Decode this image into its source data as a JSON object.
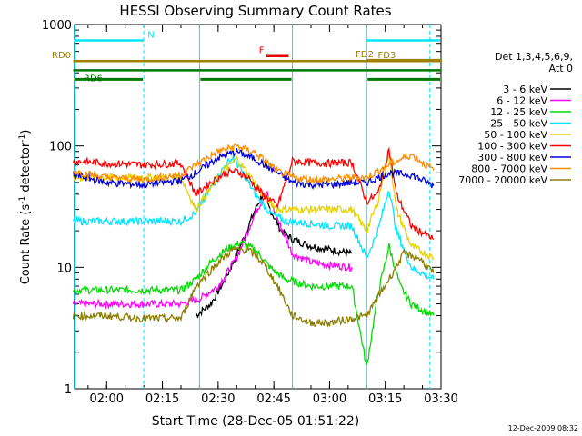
{
  "chart_data": {
    "type": "line",
    "title": "HESSI Observing Summary Count Rates",
    "xlabel": "Start Time (28-Dec-05 01:51:22)",
    "ylabel_main": "Count Rate (s",
    "ylabel_sup1": "-1",
    "ylabel_mid": " detector",
    "ylabel_sup2": "-1",
    "ylabel_end": ")",
    "y_scale": "log",
    "ylim": [
      1,
      1000
    ],
    "xlim": [
      "01:51:22",
      "03:30:00"
    ],
    "x_ticks": [
      "02:00",
      "02:15",
      "02:30",
      "02:45",
      "03:00",
      "03:15",
      "03:30"
    ],
    "y_ticks": [
      "1",
      "10",
      "100",
      "1000"
    ],
    "legend_title_1": "Det 1,3,4,5,6,9,",
    "legend_title_2": "Att 0",
    "legend_position": "right",
    "timestamp": "12-Dec-2009 08:32",
    "series": [
      {
        "name": "3 - 6 keV",
        "color": "#000000",
        "x": [
          "02:24",
          "02:28",
          "02:32",
          "02:36",
          "02:40",
          "02:42",
          "02:44",
          "02:47",
          "02:50",
          "02:55",
          "03:00",
          "03:06"
        ],
        "y": [
          4,
          5,
          8,
          15,
          30,
          40,
          30,
          20,
          17,
          15,
          14,
          13
        ]
      },
      {
        "name": "6 - 12 keV",
        "color": "#ff00ff",
        "x": [
          "01:51",
          "02:00",
          "02:10",
          "02:20",
          "02:25",
          "02:30",
          "02:35",
          "02:40",
          "02:43",
          "02:46",
          "02:50",
          "02:55",
          "03:00",
          "03:06"
        ],
        "y": [
          5,
          5,
          5,
          5,
          5.5,
          7,
          12,
          28,
          42,
          25,
          13,
          11,
          10.5,
          10
        ]
      },
      {
        "name": "12 - 25 keV",
        "color": "#00dd00",
        "x": [
          "01:51",
          "02:00",
          "02:10",
          "02:20",
          "02:24",
          "02:28",
          "02:32",
          "02:36",
          "02:40",
          "02:44",
          "02:48",
          "02:55",
          "03:00",
          "03:06",
          "03:10",
          "03:13",
          "03:16",
          "03:19",
          "03:22",
          "03:28"
        ],
        "y": [
          6.5,
          6.5,
          6.5,
          6.5,
          8,
          11,
          14,
          16,
          14,
          10,
          8,
          7,
          7,
          7,
          1.5,
          6,
          15,
          7,
          5,
          4
        ]
      },
      {
        "name": "25 - 50 keV",
        "color": "#00e5ff",
        "x": [
          "01:51",
          "02:00",
          "02:10",
          "02:20",
          "02:24",
          "02:28",
          "02:32",
          "02:34",
          "02:36",
          "02:40",
          "02:44",
          "02:48",
          "02:55",
          "03:00",
          "03:06",
          "03:10",
          "03:13",
          "03:16",
          "03:18",
          "03:22",
          "03:28"
        ],
        "y": [
          24,
          24,
          24,
          24,
          28,
          45,
          70,
          80,
          65,
          40,
          28,
          24,
          23,
          22,
          22,
          12,
          20,
          45,
          20,
          10,
          8
        ]
      },
      {
        "name": "50 - 100 keV",
        "color": "#e6d200",
        "x": [
          "01:51",
          "02:00",
          "02:10",
          "02:20",
          "02:24",
          "02:28",
          "02:32",
          "02:35",
          "02:38",
          "02:42",
          "02:46",
          "02:50",
          "02:55",
          "03:00",
          "03:06",
          "03:10",
          "03:13",
          "03:16",
          "03:18",
          "03:22",
          "03:28"
        ],
        "y": [
          55,
          55,
          55,
          55,
          30,
          45,
          65,
          78,
          60,
          40,
          30,
          30,
          30,
          30,
          30,
          20,
          35,
          90,
          30,
          15,
          12
        ]
      },
      {
        "name": "100 - 300 keV",
        "color": "#ff0000",
        "x": [
          "01:51",
          "02:00",
          "02:10",
          "02:20",
          "02:24",
          "02:28",
          "02:32",
          "02:35",
          "02:38",
          "02:42",
          "02:46",
          "02:50",
          "02:55",
          "03:00",
          "03:06",
          "03:10",
          "03:13",
          "03:16",
          "03:18",
          "03:22",
          "03:28"
        ],
        "y": [
          75,
          72,
          70,
          72,
          40,
          50,
          60,
          62,
          55,
          40,
          32,
          75,
          73,
          72,
          73,
          35,
          40,
          95,
          40,
          22,
          17
        ]
      },
      {
        "name": "300 - 800 keV",
        "color": "#0000dd",
        "x": [
          "01:51",
          "02:00",
          "02:10",
          "02:20",
          "02:24",
          "02:30",
          "02:35",
          "02:40",
          "02:46",
          "02:50",
          "02:55",
          "03:00",
          "03:06",
          "03:10",
          "03:16",
          "03:22",
          "03:28"
        ],
        "y": [
          58,
          50,
          48,
          52,
          60,
          80,
          90,
          78,
          60,
          50,
          48,
          48,
          50,
          50,
          60,
          58,
          47
        ]
      },
      {
        "name": "800 - 7000 keV",
        "color": "#ff8c00",
        "x": [
          "01:51",
          "02:00",
          "02:10",
          "02:20",
          "02:24",
          "02:30",
          "02:35",
          "02:40",
          "02:46",
          "02:50",
          "02:55",
          "03:00",
          "03:06",
          "03:10",
          "03:16",
          "03:22",
          "03:28"
        ],
        "y": [
          62,
          55,
          53,
          58,
          70,
          90,
          100,
          88,
          62,
          55,
          53,
          53,
          55,
          55,
          70,
          85,
          63
        ]
      },
      {
        "name": "7000 - 20000 keV",
        "color": "#8b7d00",
        "x": [
          "01:51",
          "02:00",
          "02:10",
          "02:20",
          "02:24",
          "02:30",
          "02:34",
          "02:38",
          "02:42",
          "02:46",
          "02:50",
          "02:55",
          "03:00",
          "03:06",
          "03:10",
          "03:16",
          "03:20",
          "03:24",
          "03:28"
        ],
        "y": [
          4,
          4,
          3.8,
          3.8,
          7,
          11,
          14,
          14,
          11,
          7,
          4,
          3.5,
          3.5,
          3.8,
          4,
          8,
          13,
          12,
          9
        ]
      }
    ],
    "annotations": [
      {
        "label": "N",
        "color": "#00e5ff",
        "start": "01:51",
        "end": "03:30",
        "level": 740,
        "gap": [
          "02:10",
          "03:10"
        ]
      },
      {
        "label": "F",
        "color": "#ee0000",
        "start": "02:43",
        "end": "02:49",
        "level": 550
      },
      {
        "label": "FD2",
        "color": "#a08000",
        "start": "03:10",
        "end": "03:30",
        "level": 510
      },
      {
        "label": "FD3",
        "color": "#a08000",
        "start": "03:18",
        "end": "03:30",
        "level": 500
      },
      {
        "label": "RD0",
        "color": "#a08000",
        "start": "01:51",
        "end": "03:30",
        "level": 500
      },
      {
        "label": "RD6",
        "color": "#007700",
        "start": "01:51",
        "end": "03:30",
        "level": 420
      }
    ]
  }
}
